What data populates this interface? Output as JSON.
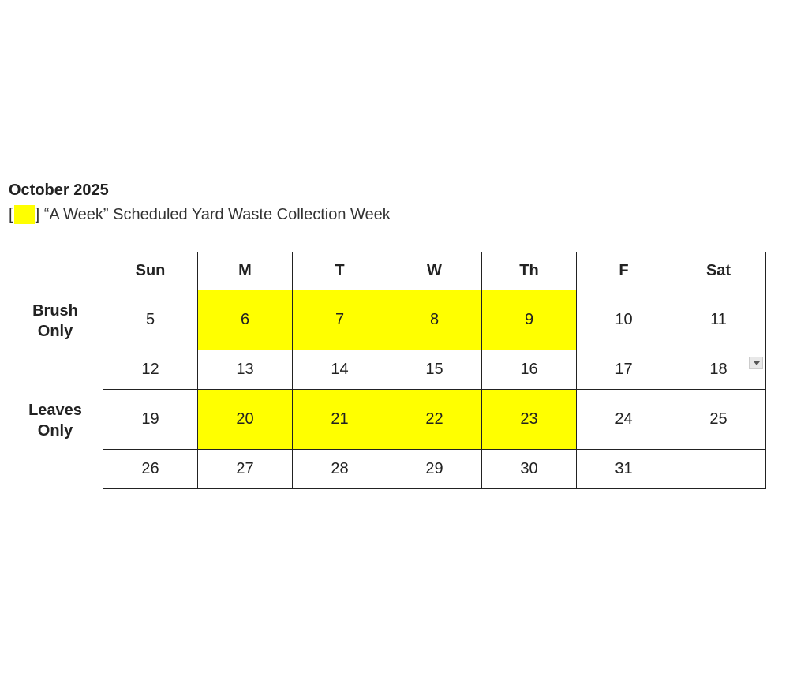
{
  "title": "October 2025",
  "legend": {
    "open": "[",
    "close": "]",
    "text": "“A Week” Scheduled Yard Waste Collection Week",
    "color": "#ffff00"
  },
  "row_labels": [
    "Brush Only",
    "Leaves Only"
  ],
  "headers": [
    "Sun",
    "M",
    "T",
    "W",
    "Th",
    "F",
    "Sat"
  ],
  "weeks": [
    {
      "days": [
        "5",
        "6",
        "7",
        "8",
        "9",
        "10",
        "11"
      ],
      "highlighted": [
        1,
        2,
        3,
        4
      ]
    },
    {
      "days": [
        "12",
        "13",
        "14",
        "15",
        "16",
        "17",
        "18"
      ],
      "highlighted": []
    },
    {
      "days": [
        "19",
        "20",
        "21",
        "22",
        "23",
        "24",
        "25"
      ],
      "highlighted": [
        1,
        2,
        3,
        4
      ]
    },
    {
      "days": [
        "26",
        "27",
        "28",
        "29",
        "30",
        "31",
        ""
      ],
      "highlighted": []
    }
  ]
}
